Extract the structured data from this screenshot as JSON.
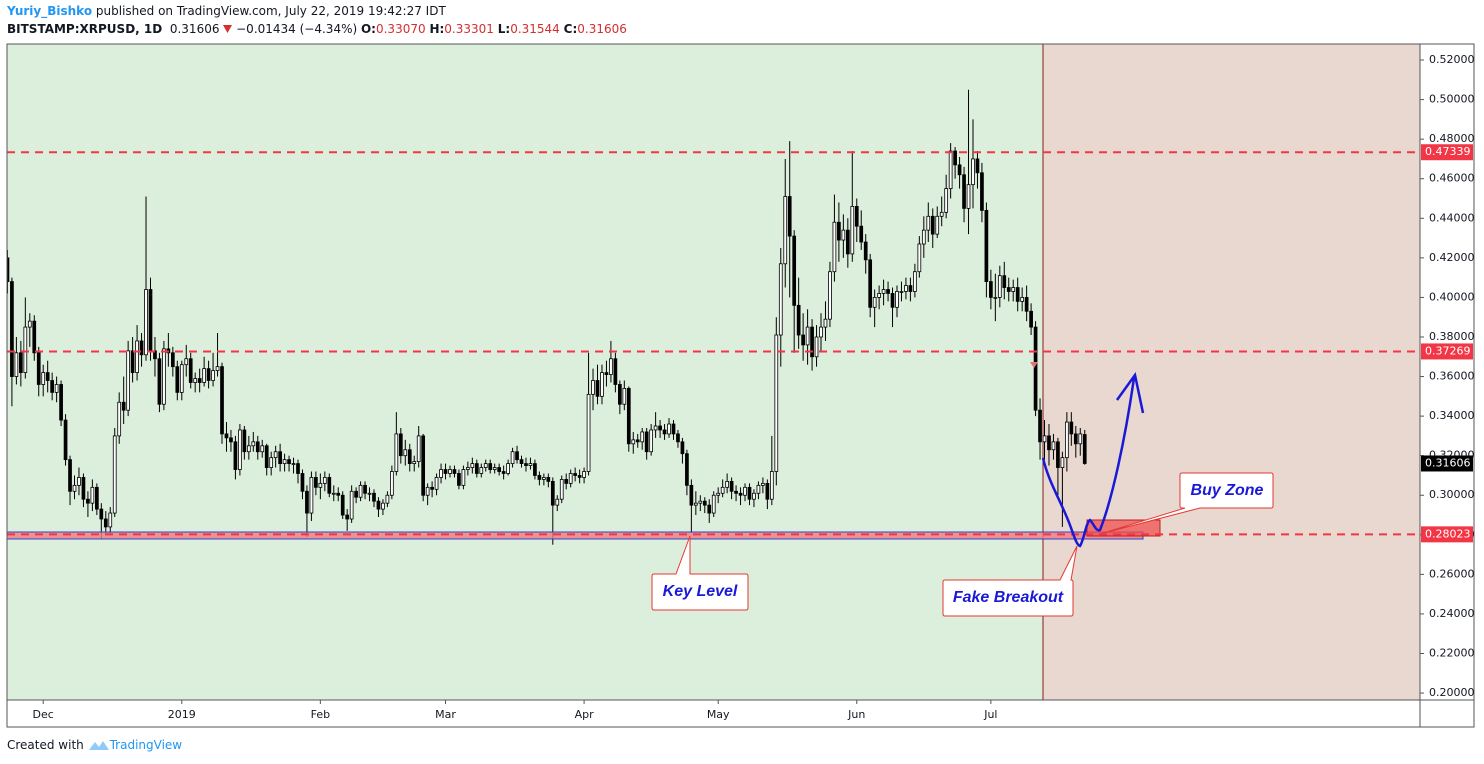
{
  "header": {
    "author": "Yuriy_Bishko",
    "published": "published on TradingView.com, July 22, 2019 19:42:27 IDT",
    "symbol": "BITSTAMP:XRPUSD, 1D",
    "last": "0.31606",
    "change": "−0.01434 (−4.34%)",
    "ohlc": [
      {
        "key": "O:",
        "value": "0.33070"
      },
      {
        "key": "H:",
        "value": "0.33301"
      },
      {
        "key": "L:",
        "value": "0.31544"
      },
      {
        "key": "C:",
        "value": "0.31606"
      }
    ]
  },
  "footer": {
    "created": "Created with",
    "brand": "TradingView"
  },
  "chart_data": {
    "type": "candlestick",
    "up_color": "#ffffff",
    "down_color": "#000000",
    "wick_color": "#000000",
    "grid": false,
    "xlim": [
      -0.1,
      316
    ],
    "xticks": [
      {
        "value": 8,
        "label": "Dec"
      },
      {
        "value": 39,
        "label": "2019"
      },
      {
        "value": 70,
        "label": "Feb"
      },
      {
        "value": 98,
        "label": "Mar"
      },
      {
        "value": 129,
        "label": "Apr"
      },
      {
        "value": 159,
        "label": "May"
      },
      {
        "value": 190,
        "label": "Jun"
      },
      {
        "value": 220,
        "label": "Jul"
      }
    ],
    "ylim": [
      0.1965,
      0.5281
    ],
    "yticks": [
      {
        "value": 0.2,
        "label": "0.20000"
      },
      {
        "value": 0.22,
        "label": "0.22000"
      },
      {
        "value": 0.24,
        "label": "0.24000"
      },
      {
        "value": 0.26,
        "label": "0.26000"
      },
      {
        "value": 0.28,
        "label": "0.28000"
      },
      {
        "value": 0.3,
        "label": "0.30000"
      },
      {
        "value": 0.32,
        "label": "0.32000"
      },
      {
        "value": 0.34,
        "label": "0.34000"
      },
      {
        "value": 0.36,
        "label": "0.36000"
      },
      {
        "value": 0.38,
        "label": "0.38000"
      },
      {
        "value": 0.4,
        "label": "0.40000"
      },
      {
        "value": 0.42,
        "label": "0.42000"
      },
      {
        "value": 0.44,
        "label": "0.44000"
      },
      {
        "value": 0.46,
        "label": "0.46000"
      },
      {
        "value": 0.48,
        "label": "0.48000"
      },
      {
        "value": 0.5,
        "label": "0.50000"
      },
      {
        "value": 0.52,
        "label": "0.52000"
      }
    ],
    "price_lines": [
      0.47339,
      0.37269,
      0.28023
    ],
    "price_line_color": "#f23645",
    "annotations": [
      "Key Level",
      "Fake Breakout",
      "Buy Zone"
    ],
    "open": [
      0.42,
      0.408,
      0.36,
      0.372,
      0.362,
      0.385,
      0.388,
      0.372,
      0.356,
      0.362,
      0.358,
      0.352,
      0.356,
      0.338,
      0.318,
      0.302,
      0.305,
      0.309,
      0.298,
      0.296,
      0.304,
      0.293,
      0.288,
      0.284,
      0.291,
      0.33,
      0.347,
      0.343,
      0.373,
      0.362,
      0.378,
      0.371,
      0.404,
      0.373,
      0.369,
      0.346,
      0.374,
      0.372,
      0.365,
      0.352,
      0.366,
      0.369,
      0.357,
      0.359,
      0.357,
      0.364,
      0.358,
      0.363,
      0.365,
      0.331,
      0.329,
      0.327,
      0.313,
      0.333,
      0.322,
      0.325,
      0.327,
      0.322,
      0.325,
      0.314,
      0.319,
      0.322,
      0.316,
      0.318,
      0.316,
      0.316,
      0.311,
      0.302,
      0.291,
      0.309,
      0.304,
      0.306,
      0.309,
      0.301,
      0.301,
      0.3,
      0.29,
      0.288,
      0.302,
      0.299,
      0.305,
      0.301,
      0.301,
      0.297,
      0.293,
      0.296,
      0.3,
      0.312,
      0.331,
      0.32,
      0.323,
      0.316,
      0.317,
      0.33,
      0.3,
      0.304,
      0.303,
      0.309,
      0.313,
      0.311,
      0.313,
      0.311,
      0.305,
      0.313,
      0.314,
      0.316,
      0.311,
      0.314,
      0.316,
      0.313,
      0.314,
      0.312,
      0.311,
      0.316,
      0.322,
      0.318,
      0.316,
      0.315,
      0.316,
      0.31,
      0.308,
      0.309,
      0.307,
      0.295,
      0.298,
      0.308,
      0.306,
      0.311,
      0.31,
      0.309,
      0.312,
      0.351,
      0.358,
      0.35,
      0.362,
      0.361,
      0.369,
      0.356,
      0.346,
      0.354,
      0.326,
      0.328,
      0.327,
      0.332,
      0.322,
      0.333,
      0.335,
      0.333,
      0.331,
      0.336,
      0.331,
      0.327,
      0.321,
      0.305,
      0.295,
      0.296,
      0.297,
      0.295,
      0.291,
      0.3,
      0.301,
      0.304,
      0.307,
      0.302,
      0.301,
      0.3,
      0.304,
      0.298,
      0.301,
      0.305,
      0.306,
      0.298,
      0.312,
      0.381,
      0.417,
      0.451,
      0.431,
      0.396,
      0.381,
      0.376,
      0.385,
      0.37,
      0.38,
      0.385,
      0.389,
      0.413,
      0.438,
      0.429,
      0.434,
      0.422,
      0.446,
      0.436,
      0.428,
      0.419,
      0.395,
      0.4,
      0.402,
      0.404,
      0.402,
      0.395,
      0.403,
      0.403,
      0.406,
      0.403,
      0.413,
      0.427,
      0.434,
      0.441,
      0.432,
      0.441,
      0.443,
      0.455,
      0.474,
      0.467,
      0.462,
      0.445,
      0.457,
      0.47,
      0.463,
      0.444,
      0.408,
      0.4,
      0.4,
      0.411,
      0.405,
      0.403,
      0.405,
      0.398,
      0.4,
      0.393,
      0.385,
      0.343,
      0.327,
      0.33,
      0.323,
      0.327,
      0.314,
      0.319,
      0.337,
      0.331,
      0.326,
      0.3307
    ],
    "high": [
      0.424,
      0.41,
      0.38,
      0.378,
      0.4,
      0.392,
      0.391,
      0.375,
      0.366,
      0.368,
      0.362,
      0.36,
      0.358,
      0.341,
      0.32,
      0.31,
      0.314,
      0.311,
      0.302,
      0.308,
      0.306,
      0.296,
      0.292,
      0.294,
      0.334,
      0.352,
      0.36,
      0.378,
      0.38,
      0.386,
      0.382,
      0.451,
      0.41,
      0.38,
      0.372,
      0.378,
      0.382,
      0.375,
      0.368,
      0.368,
      0.376,
      0.372,
      0.362,
      0.364,
      0.37,
      0.368,
      0.372,
      0.382,
      0.367,
      0.337,
      0.333,
      0.33,
      0.336,
      0.335,
      0.33,
      0.332,
      0.33,
      0.328,
      0.326,
      0.322,
      0.325,
      0.326,
      0.321,
      0.32,
      0.319,
      0.318,
      0.313,
      0.305,
      0.312,
      0.312,
      0.311,
      0.312,
      0.311,
      0.305,
      0.304,
      0.302,
      0.293,
      0.305,
      0.304,
      0.307,
      0.307,
      0.304,
      0.303,
      0.299,
      0.298,
      0.302,
      0.315,
      0.342,
      0.334,
      0.328,
      0.326,
      0.32,
      0.335,
      0.331,
      0.306,
      0.307,
      0.311,
      0.316,
      0.316,
      0.315,
      0.315,
      0.313,
      0.315,
      0.317,
      0.319,
      0.318,
      0.316,
      0.318,
      0.318,
      0.316,
      0.316,
      0.315,
      0.318,
      0.324,
      0.325,
      0.32,
      0.319,
      0.319,
      0.318,
      0.312,
      0.311,
      0.311,
      0.309,
      0.3,
      0.31,
      0.311,
      0.313,
      0.314,
      0.313,
      0.314,
      0.372,
      0.364,
      0.366,
      0.366,
      0.368,
      0.378,
      0.372,
      0.358,
      0.358,
      0.355,
      0.332,
      0.331,
      0.334,
      0.334,
      0.336,
      0.342,
      0.338,
      0.336,
      0.339,
      0.338,
      0.333,
      0.329,
      0.323,
      0.308,
      0.302,
      0.3,
      0.299,
      0.298,
      0.302,
      0.304,
      0.308,
      0.311,
      0.309,
      0.305,
      0.304,
      0.306,
      0.306,
      0.303,
      0.307,
      0.309,
      0.308,
      0.33,
      0.39,
      0.425,
      0.47,
      0.479,
      0.434,
      0.41,
      0.392,
      0.394,
      0.389,
      0.386,
      0.392,
      0.398,
      0.418,
      0.452,
      0.448,
      0.442,
      0.44,
      0.474,
      0.45,
      0.444,
      0.432,
      0.422,
      0.404,
      0.406,
      0.409,
      0.408,
      0.405,
      0.406,
      0.408,
      0.41,
      0.41,
      0.417,
      0.431,
      0.441,
      0.448,
      0.445,
      0.446,
      0.451,
      0.462,
      0.478,
      0.476,
      0.471,
      0.466,
      0.505,
      0.49,
      0.474,
      0.468,
      0.448,
      0.414,
      0.412,
      0.416,
      0.418,
      0.41,
      0.409,
      0.41,
      0.405,
      0.406,
      0.397,
      0.388,
      0.349,
      0.338,
      0.336,
      0.331,
      0.329,
      0.322,
      0.342,
      0.342,
      0.335,
      0.334,
      0.33301
    ],
    "low": [
      0.402,
      0.345,
      0.356,
      0.355,
      0.359,
      0.375,
      0.368,
      0.35,
      0.35,
      0.352,
      0.348,
      0.347,
      0.335,
      0.315,
      0.295,
      0.298,
      0.3,
      0.294,
      0.289,
      0.292,
      0.29,
      0.278,
      0.28,
      0.28,
      0.289,
      0.326,
      0.336,
      0.34,
      0.357,
      0.358,
      0.365,
      0.368,
      0.368,
      0.36,
      0.342,
      0.343,
      0.365,
      0.36,
      0.348,
      0.348,
      0.36,
      0.354,
      0.352,
      0.352,
      0.355,
      0.354,
      0.355,
      0.36,
      0.326,
      0.322,
      0.322,
      0.308,
      0.31,
      0.318,
      0.318,
      0.322,
      0.318,
      0.319,
      0.31,
      0.31,
      0.314,
      0.312,
      0.312,
      0.312,
      0.311,
      0.306,
      0.298,
      0.279,
      0.287,
      0.3,
      0.298,
      0.302,
      0.299,
      0.297,
      0.297,
      0.288,
      0.282,
      0.286,
      0.296,
      0.297,
      0.298,
      0.297,
      0.294,
      0.289,
      0.29,
      0.294,
      0.298,
      0.31,
      0.316,
      0.315,
      0.312,
      0.312,
      0.314,
      0.297,
      0.295,
      0.299,
      0.3,
      0.306,
      0.308,
      0.309,
      0.309,
      0.303,
      0.303,
      0.31,
      0.311,
      0.309,
      0.309,
      0.312,
      0.311,
      0.311,
      0.31,
      0.308,
      0.31,
      0.314,
      0.316,
      0.314,
      0.312,
      0.313,
      0.308,
      0.305,
      0.305,
      0.304,
      0.275,
      0.292,
      0.296,
      0.303,
      0.304,
      0.307,
      0.306,
      0.306,
      0.31,
      0.343,
      0.346,
      0.346,
      0.355,
      0.357,
      0.352,
      0.341,
      0.343,
      0.322,
      0.321,
      0.324,
      0.323,
      0.318,
      0.32,
      0.329,
      0.329,
      0.328,
      0.329,
      0.328,
      0.324,
      0.316,
      0.3,
      0.281,
      0.29,
      0.292,
      0.291,
      0.286,
      0.289,
      0.296,
      0.299,
      0.301,
      0.298,
      0.297,
      0.295,
      0.297,
      0.295,
      0.294,
      0.298,
      0.301,
      0.293,
      0.295,
      0.305,
      0.365,
      0.405,
      0.4,
      0.372,
      0.374,
      0.368,
      0.366,
      0.363,
      0.365,
      0.373,
      0.378,
      0.385,
      0.408,
      0.418,
      0.42,
      0.415,
      0.418,
      0.428,
      0.424,
      0.412,
      0.39,
      0.385,
      0.394,
      0.396,
      0.398,
      0.385,
      0.39,
      0.398,
      0.399,
      0.398,
      0.4,
      0.41,
      0.42,
      0.428,
      0.425,
      0.43,
      0.436,
      0.44,
      0.45,
      0.46,
      0.455,
      0.438,
      0.432,
      0.445,
      0.455,
      0.438,
      0.4,
      0.394,
      0.388,
      0.395,
      0.399,
      0.398,
      0.398,
      0.393,
      0.393,
      0.388,
      0.381,
      0.34,
      0.318,
      0.318,
      0.315,
      0.318,
      0.3,
      0.284,
      0.312,
      0.325,
      0.319,
      0.32,
      0.31544
    ],
    "close": [
      0.408,
      0.36,
      0.372,
      0.362,
      0.385,
      0.388,
      0.372,
      0.356,
      0.362,
      0.358,
      0.352,
      0.356,
      0.338,
      0.318,
      0.302,
      0.305,
      0.309,
      0.298,
      0.296,
      0.304,
      0.293,
      0.288,
      0.284,
      0.291,
      0.33,
      0.347,
      0.343,
      0.373,
      0.362,
      0.378,
      0.371,
      0.404,
      0.373,
      0.369,
      0.346,
      0.374,
      0.372,
      0.365,
      0.352,
      0.366,
      0.369,
      0.357,
      0.359,
      0.357,
      0.364,
      0.358,
      0.363,
      0.365,
      0.331,
      0.329,
      0.327,
      0.313,
      0.333,
      0.322,
      0.325,
      0.327,
      0.322,
      0.325,
      0.314,
      0.319,
      0.322,
      0.316,
      0.318,
      0.316,
      0.316,
      0.311,
      0.302,
      0.291,
      0.309,
      0.304,
      0.306,
      0.309,
      0.301,
      0.301,
      0.3,
      0.29,
      0.288,
      0.302,
      0.299,
      0.305,
      0.301,
      0.301,
      0.297,
      0.293,
      0.296,
      0.3,
      0.312,
      0.331,
      0.32,
      0.323,
      0.316,
      0.317,
      0.33,
      0.3,
      0.304,
      0.303,
      0.309,
      0.313,
      0.311,
      0.313,
      0.311,
      0.305,
      0.313,
      0.314,
      0.316,
      0.311,
      0.314,
      0.316,
      0.313,
      0.314,
      0.312,
      0.311,
      0.316,
      0.322,
      0.318,
      0.316,
      0.315,
      0.316,
      0.31,
      0.308,
      0.309,
      0.307,
      0.295,
      0.298,
      0.308,
      0.306,
      0.311,
      0.31,
      0.309,
      0.312,
      0.351,
      0.358,
      0.35,
      0.362,
      0.361,
      0.369,
      0.356,
      0.346,
      0.354,
      0.326,
      0.328,
      0.327,
      0.332,
      0.322,
      0.333,
      0.335,
      0.333,
      0.331,
      0.336,
      0.331,
      0.327,
      0.321,
      0.305,
      0.295,
      0.296,
      0.297,
      0.295,
      0.291,
      0.3,
      0.301,
      0.304,
      0.307,
      0.302,
      0.301,
      0.3,
      0.304,
      0.298,
      0.301,
      0.305,
      0.306,
      0.298,
      0.312,
      0.381,
      0.417,
      0.451,
      0.431,
      0.396,
      0.381,
      0.376,
      0.385,
      0.37,
      0.38,
      0.385,
      0.389,
      0.413,
      0.438,
      0.429,
      0.434,
      0.422,
      0.446,
      0.436,
      0.428,
      0.419,
      0.395,
      0.4,
      0.402,
      0.404,
      0.402,
      0.395,
      0.403,
      0.403,
      0.406,
      0.403,
      0.413,
      0.427,
      0.434,
      0.441,
      0.432,
      0.441,
      0.443,
      0.455,
      0.474,
      0.467,
      0.462,
      0.445,
      0.457,
      0.47,
      0.463,
      0.444,
      0.408,
      0.4,
      0.4,
      0.411,
      0.405,
      0.403,
      0.405,
      0.398,
      0.4,
      0.393,
      0.385,
      0.343,
      0.327,
      0.33,
      0.323,
      0.327,
      0.314,
      0.319,
      0.337,
      0.331,
      0.326,
      0.331,
      0.31606
    ]
  }
}
